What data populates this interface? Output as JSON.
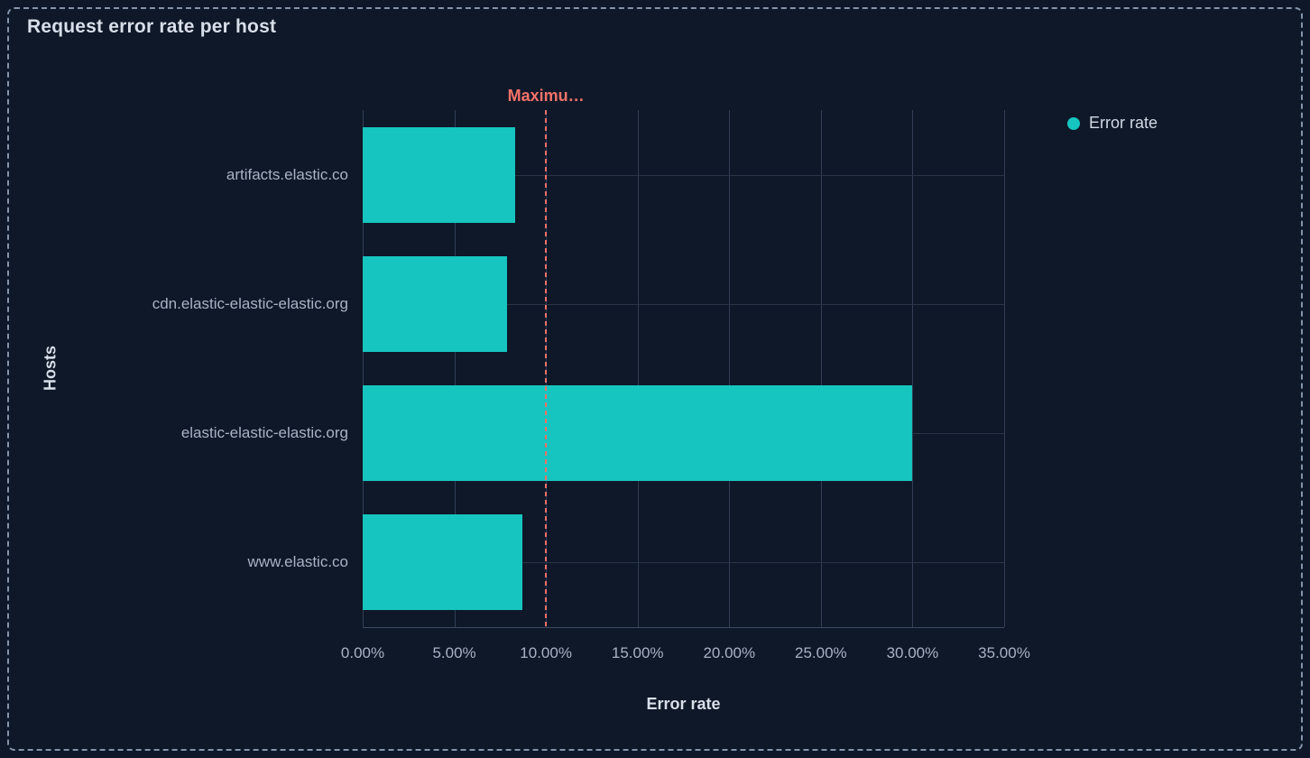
{
  "panel": {
    "title": "Request error rate per host"
  },
  "legend": {
    "position": "top-right",
    "items": [
      {
        "label": "Error rate",
        "color": "#16C5C0",
        "marker": "circle-dot-icon"
      }
    ]
  },
  "chart_data": {
    "type": "bar",
    "orientation": "horizontal",
    "title": "Request error rate per host",
    "categories": [
      "artifacts.elastic.co",
      "cdn.elastic-elastic-elastic.org",
      "elastic-elastic-elastic.org",
      "www.elastic.co"
    ],
    "series": [
      {
        "name": "Error rate",
        "values": [
          8.3,
          7.9,
          30,
          8.7
        ]
      }
    ],
    "xlabel": "Error rate",
    "ylabel": "Hosts",
    "xlim": [
      0,
      35
    ],
    "x_tick_values": [
      0,
      5,
      10,
      15,
      20,
      25,
      30,
      35
    ],
    "x_ticks": [
      "0.00%",
      "5.00%",
      "10.00%",
      "15.00%",
      "20.00%",
      "25.00%",
      "30.00%",
      "35.00%"
    ],
    "grid": true,
    "legend_position": "right",
    "annotation": {
      "label": "Maximu…",
      "value": 10,
      "color": "#F6726A",
      "style": "dashed-vertical-line"
    }
  },
  "colors": {
    "background": "#0E1828",
    "panel_border": "#8494AB",
    "bar": "#16C5C0",
    "annotation": "#F6726A",
    "grid_vertical": "#313E55",
    "grid_horizontal": "#2A3447",
    "axis_line": "#3C4A63",
    "title_text": "#D9DFEA",
    "label_text": "#A9B2C4"
  }
}
